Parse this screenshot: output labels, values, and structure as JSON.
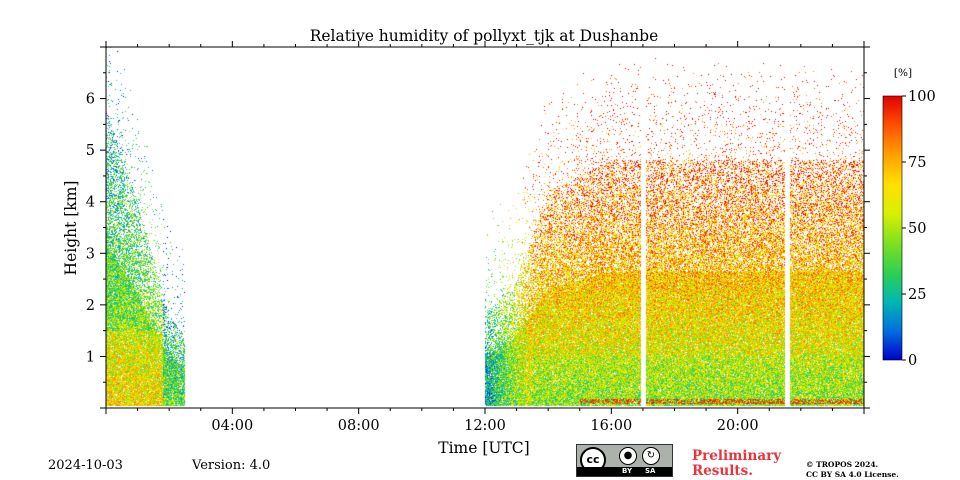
{
  "chart_data": {
    "type": "heatmap",
    "title": "Relative humidity of pollyxt_tjk at Dushanbe",
    "xlabel": "Time [UTC]",
    "ylabel": "Height [km]",
    "x_ticks": [
      "04:00",
      "08:00",
      "12:00",
      "16:00",
      "20:00"
    ],
    "x_tick_hours": [
      4,
      8,
      12,
      16,
      20
    ],
    "xlim_hours": [
      0,
      24
    ],
    "y_ticks": [
      1,
      2,
      3,
      4,
      5,
      6
    ],
    "ylim": [
      0,
      7
    ],
    "colorbar": {
      "unit": "[%]",
      "ticks": [
        0,
        25,
        50,
        75,
        100
      ],
      "range": [
        0,
        100
      ],
      "colormap": [
        "#0000c8",
        "#0070e0",
        "#00b8b0",
        "#30d050",
        "#80e020",
        "#d8f000",
        "#ffe000",
        "#ffa000",
        "#ff5000",
        "#e00000"
      ]
    },
    "data_segments_hours": [
      [
        0,
        2.5
      ],
      [
        12.0,
        16.95
      ],
      [
        17.1,
        21.5
      ],
      [
        21.65,
        24
      ]
    ],
    "cloud_tops_km": [
      {
        "hour": 0.0,
        "top": 5.8
      },
      {
        "hour": 1.0,
        "top": 4.0
      },
      {
        "hour": 2.0,
        "top": 1.8
      },
      {
        "hour": 2.5,
        "top": 1.4
      },
      {
        "hour": 12.0,
        "top": 1.8
      },
      {
        "hour": 13.0,
        "top": 2.5
      },
      {
        "hour": 14.0,
        "top": 4.2
      },
      {
        "hour": 16.0,
        "top": 4.8
      },
      {
        "hour": 20.0,
        "top": 4.8
      },
      {
        "hour": 24.0,
        "top": 4.8
      }
    ]
  },
  "footer": {
    "date": "2024-10-03",
    "version": "Version: 4.0",
    "preliminary": [
      "Preliminary",
      "Results."
    ],
    "copyright": [
      "© TROPOS 2024.",
      "CC BY SA 4.0 License."
    ],
    "license_badge": {
      "icon": "cc-by-sa-badge",
      "cc": "cc",
      "by": "BY",
      "sa": "SA"
    }
  }
}
